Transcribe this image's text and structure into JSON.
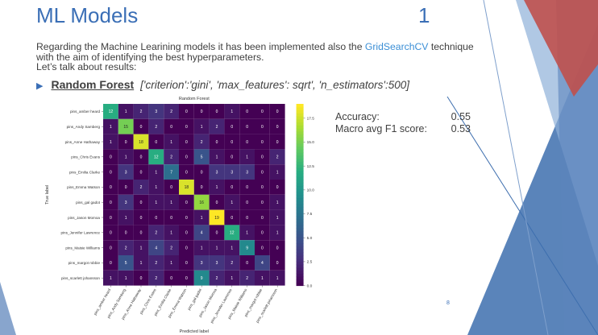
{
  "slide": {
    "title": "ML Models",
    "number": "1",
    "intro_before_link": "Regarding the Machine Learining models it has been implemented also the ",
    "intro_link": "GridSearchCV",
    "intro_after_link": " technique with the aim of identifying the best hyperparameters.",
    "intro_line2": "Let’s talk about results:",
    "bullet_label": "Random Forest",
    "bullet_params": "['criterion':'gini', 'max_features': sqrt', 'n_estimators':500]",
    "page_number": "8"
  },
  "metrics": {
    "accuracy_label": "Accuracy:",
    "accuracy_value": "0.55",
    "f1_label": "Macro avg F1 score:",
    "f1_value": "0.53"
  },
  "colors": {
    "title_blue": "#3b6fb6",
    "link_blue": "#3b8fd6",
    "body_gray": "#404040",
    "accent_red": "#c0504d"
  },
  "chart_data": {
    "type": "heatmap",
    "title": "Random Forest",
    "xlabel": "Predicted label",
    "ylabel": "True label",
    "labels": [
      "pins_amber heard",
      "pins_Andy Samberg",
      "pins_Anne Hathaway",
      "pins_Chris Evans",
      "pins_Emilia Clarke",
      "pins_Emma Watson",
      "pins_gal gadot",
      "pins_Jason Momoa",
      "pins_Jennifer Lawrence",
      "pins_Maisie Williams",
      "pins_margot robbie",
      "pins_scarlett johansson"
    ],
    "matrix": [
      [
        12,
        1,
        2,
        3,
        2,
        0,
        0,
        0,
        1,
        0,
        0,
        0
      ],
      [
        1,
        15,
        0,
        2,
        0,
        0,
        1,
        2,
        0,
        0,
        0,
        0
      ],
      [
        1,
        0,
        18,
        0,
        1,
        0,
        2,
        0,
        0,
        0,
        0,
        0
      ],
      [
        0,
        1,
        0,
        12,
        2,
        0,
        5,
        1,
        0,
        1,
        0,
        2
      ],
      [
        0,
        3,
        0,
        1,
        7,
        0,
        0,
        3,
        3,
        3,
        0,
        1
      ],
      [
        0,
        0,
        2,
        1,
        0,
        18,
        0,
        1,
        0,
        0,
        0,
        0
      ],
      [
        0,
        3,
        0,
        1,
        1,
        0,
        16,
        0,
        1,
        0,
        0,
        1
      ],
      [
        0,
        1,
        0,
        0,
        0,
        0,
        1,
        19,
        0,
        0,
        0,
        1
      ],
      [
        0,
        0,
        0,
        2,
        1,
        0,
        4,
        0,
        12,
        1,
        0,
        1
      ],
      [
        0,
        2,
        1,
        4,
        2,
        0,
        1,
        1,
        1,
        9,
        0,
        0
      ],
      [
        0,
        5,
        1,
        2,
        1,
        0,
        3,
        3,
        2,
        0,
        4,
        0
      ],
      [
        1,
        1,
        0,
        2,
        0,
        0,
        9,
        2,
        1,
        2,
        1,
        1
      ]
    ],
    "colorbar_ticks": [
      "0.0",
      "2.5",
      "5.0",
      "7.5",
      "10.0",
      "12.5",
      "15.0",
      "17.5"
    ],
    "vmin": 0,
    "vmax": 19,
    "colormap": "viridis"
  }
}
